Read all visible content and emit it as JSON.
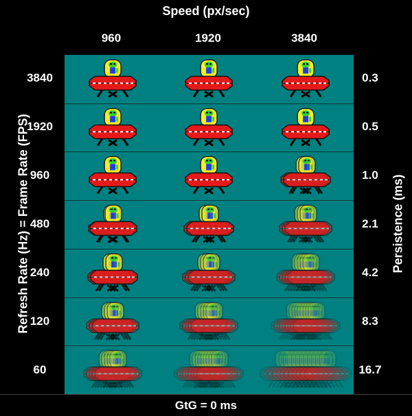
{
  "titles": {
    "top": "Speed (px/sec)",
    "left": "Refresh Rate (Hz) = Frame Rate (FPS)",
    "right": "Persistence (ms)",
    "bottom": "GtG = 0 ms"
  },
  "speeds": [
    "960",
    "1920",
    "3840"
  ],
  "refresh_rates": [
    "3840",
    "1920",
    "960",
    "480",
    "240",
    "120",
    "60"
  ],
  "persistence": [
    "0.3",
    "0.5",
    "1.0",
    "2.1",
    "4.2",
    "8.3",
    "16.7"
  ],
  "colors": {
    "background": "#000000",
    "grid": "#008080",
    "ufo_red": "#e41a1a",
    "alien_yellow": "#f2ee2a"
  }
}
